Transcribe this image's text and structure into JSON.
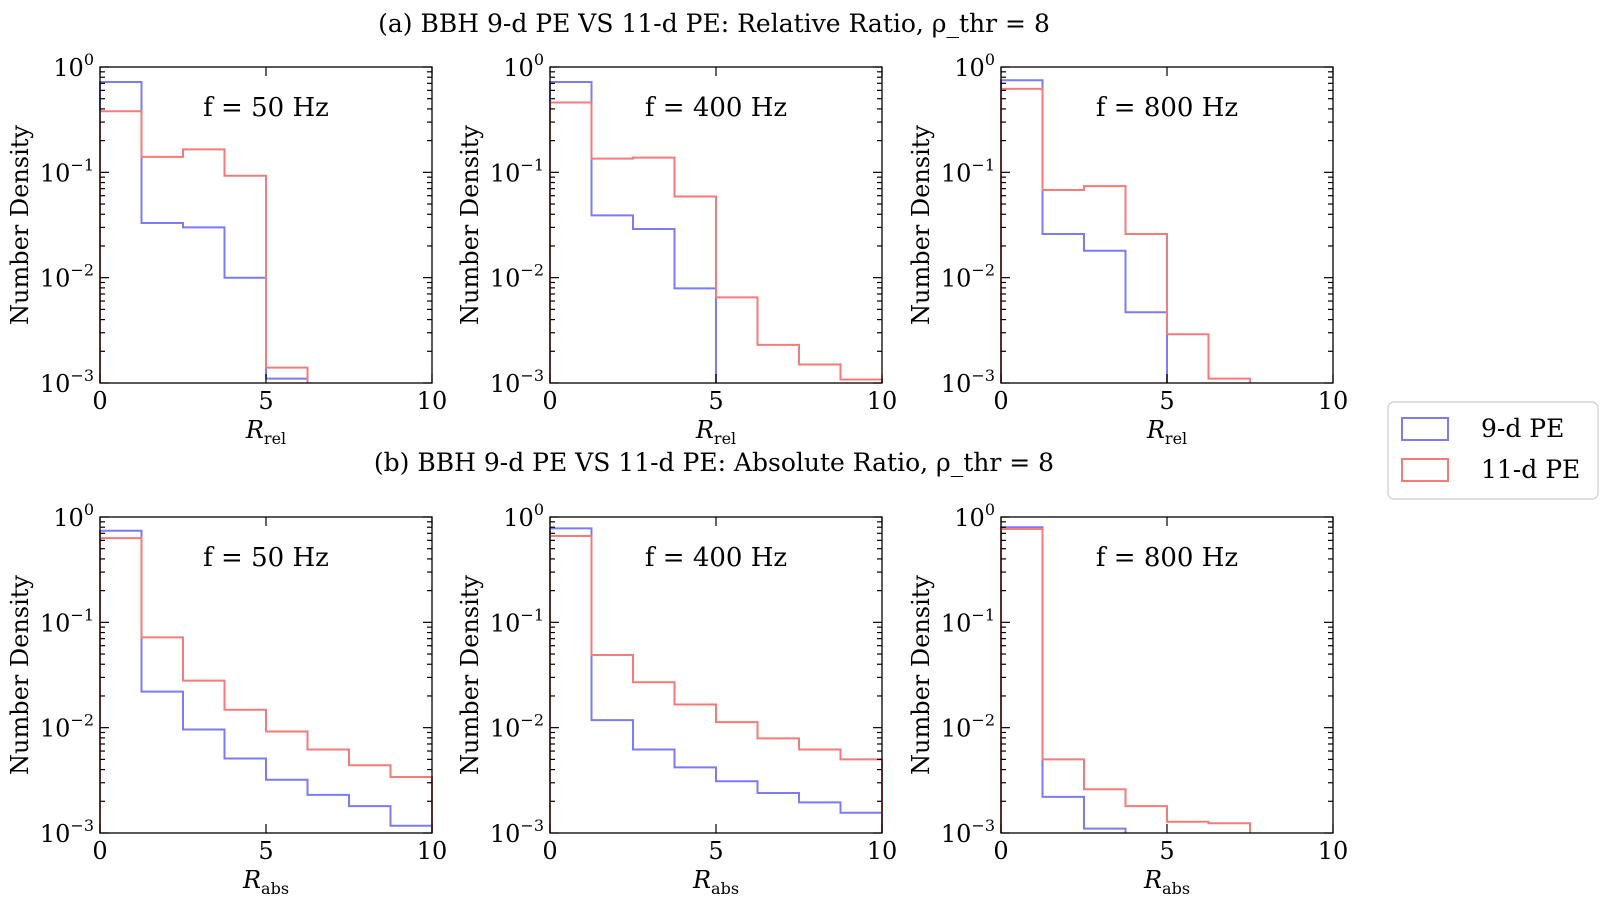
{
  "figure": {
    "legend": [
      {
        "label": "9-d PE",
        "color": "#7b7bf5"
      },
      {
        "label": "11-d PE",
        "color": "#f57b7b"
      }
    ],
    "ylabel": "Number Density",
    "yticks": [
      "10^{-3}",
      "10^{-2}",
      "10^{-1}",
      "10^{0}"
    ],
    "xticks": [
      "0",
      "5",
      "10"
    ]
  },
  "rows": [
    {
      "title": "(a) BBH 9-d PE VS 11-d PE: Relative Ratio, ρ_thr = 8",
      "xlabel_main": "R",
      "xlabel_sub": "rel"
    },
    {
      "title": "(b) BBH 9-d PE VS 11-d PE: Absolute Ratio, ρ_thr = 8",
      "xlabel_main": "R",
      "xlabel_sub": "abs"
    }
  ],
  "chart_data": [
    {
      "type": "histogram-step",
      "row": 0,
      "col": 0,
      "annotation": "f = 50 Hz",
      "xlim": [
        0,
        10
      ],
      "ylim": [
        0.001,
        1
      ],
      "yscale": "log",
      "bin_edges": [
        0,
        1.25,
        2.5,
        3.75,
        5,
        6.25,
        7.5,
        8.75,
        10
      ],
      "series": [
        {
          "name": "9-d PE",
          "values": [
            0.72,
            0.033,
            0.03,
            0.01,
            0.0011
          ]
        },
        {
          "name": "11-d PE",
          "values": [
            0.38,
            0.14,
            0.165,
            0.093,
            0.0014
          ]
        }
      ]
    },
    {
      "type": "histogram-step",
      "row": 0,
      "col": 1,
      "annotation": "f = 400 Hz",
      "xlim": [
        0,
        10
      ],
      "ylim": [
        0.001,
        1
      ],
      "yscale": "log",
      "bin_edges": [
        0,
        1.25,
        2.5,
        3.75,
        5,
        6.25,
        7.5,
        8.75,
        10
      ],
      "series": [
        {
          "name": "9-d PE",
          "values": [
            0.72,
            0.039,
            0.029,
            0.0079
          ]
        },
        {
          "name": "11-d PE",
          "values": [
            0.46,
            0.135,
            0.138,
            0.059,
            0.0065,
            0.0023,
            0.0015,
            0.00108
          ]
        }
      ]
    },
    {
      "type": "histogram-step",
      "row": 0,
      "col": 2,
      "annotation": "f = 800 Hz",
      "xlim": [
        0,
        10
      ],
      "ylim": [
        0.001,
        1
      ],
      "yscale": "log",
      "bin_edges": [
        0,
        1.25,
        2.5,
        3.75,
        5,
        6.25,
        7.5,
        8.75,
        10
      ],
      "series": [
        {
          "name": "9-d PE",
          "values": [
            0.75,
            0.026,
            0.018,
            0.0047
          ]
        },
        {
          "name": "11-d PE",
          "values": [
            0.62,
            0.068,
            0.074,
            0.026,
            0.0029,
            0.0011
          ]
        }
      ]
    },
    {
      "type": "histogram-step",
      "row": 1,
      "col": 0,
      "annotation": "f = 50 Hz",
      "xlim": [
        0,
        10
      ],
      "ylim": [
        0.001,
        1
      ],
      "yscale": "log",
      "bin_edges": [
        0,
        1.25,
        2.5,
        3.75,
        5,
        6.25,
        7.5,
        8.75,
        10
      ],
      "series": [
        {
          "name": "9-d PE",
          "values": [
            0.74,
            0.022,
            0.0096,
            0.0051,
            0.0032,
            0.0023,
            0.0018,
            0.00117
          ]
        },
        {
          "name": "11-d PE",
          "values": [
            0.63,
            0.072,
            0.028,
            0.0148,
            0.0092,
            0.0062,
            0.0044,
            0.0034
          ]
        }
      ]
    },
    {
      "type": "histogram-step",
      "row": 1,
      "col": 1,
      "annotation": "f = 400 Hz",
      "xlim": [
        0,
        10
      ],
      "ylim": [
        0.001,
        1
      ],
      "yscale": "log",
      "bin_edges": [
        0,
        1.25,
        2.5,
        3.75,
        5,
        6.25,
        7.5,
        8.75,
        10
      ],
      "series": [
        {
          "name": "9-d PE",
          "values": [
            0.78,
            0.0118,
            0.0062,
            0.0042,
            0.0031,
            0.0024,
            0.00195,
            0.00156
          ]
        },
        {
          "name": "11-d PE",
          "values": [
            0.66,
            0.049,
            0.027,
            0.0166,
            0.0113,
            0.0079,
            0.0062,
            0.005
          ]
        }
      ]
    },
    {
      "type": "histogram-step",
      "row": 1,
      "col": 2,
      "annotation": "f = 800 Hz",
      "xlim": [
        0,
        10
      ],
      "ylim": [
        0.001,
        1
      ],
      "yscale": "log",
      "bin_edges": [
        0,
        1.25,
        2.5,
        3.75,
        5,
        6.25,
        7.5,
        8.75,
        10
      ],
      "series": [
        {
          "name": "9-d PE",
          "values": [
            0.8,
            0.0022,
            0.0011
          ]
        },
        {
          "name": "11-d PE",
          "values": [
            0.77,
            0.005,
            0.0026,
            0.0018,
            0.00128,
            0.00124
          ]
        }
      ]
    }
  ]
}
